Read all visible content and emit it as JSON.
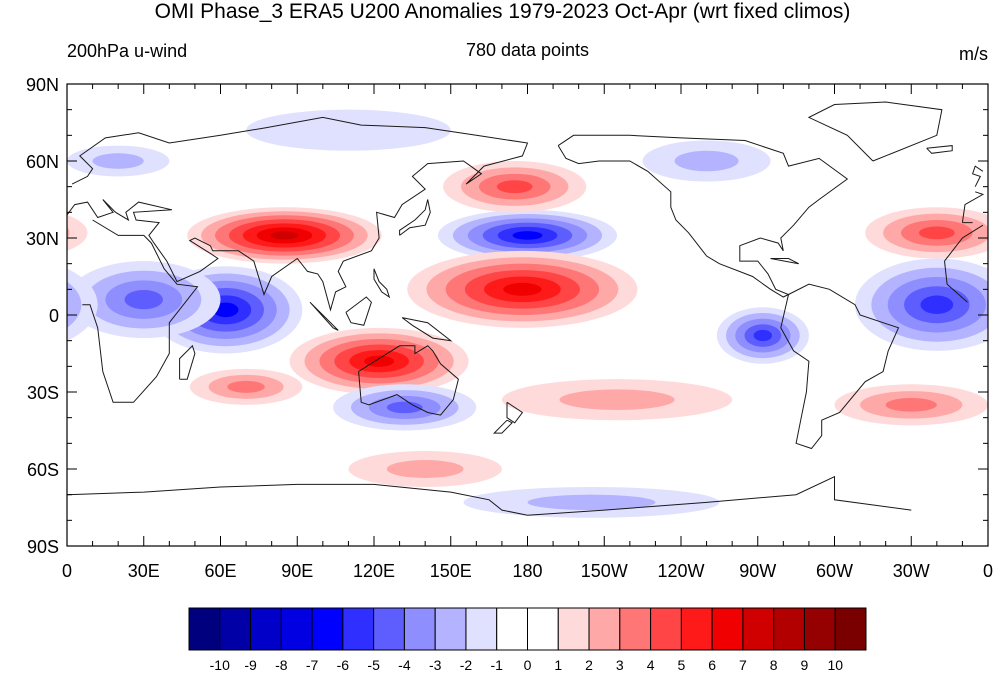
{
  "title": "OMI Phase_3 ERA5 U200 Anomalies 1979-2023 Oct-Apr (wrt fixed climos)",
  "left_string": "200hPa u-wind",
  "center_string": "780 data points",
  "right_string": "m/s",
  "map": {
    "projection": "cylindrical-equidistant",
    "center_longitude": 180,
    "lat_ticks": [
      "90N",
      "60N",
      "30N",
      "0",
      "30S",
      "60S",
      "90S"
    ],
    "lon_ticks": [
      "0",
      "30E",
      "60E",
      "90E",
      "120E",
      "150E",
      "180",
      "150W",
      "120W",
      "90W",
      "60W",
      "30W",
      "0"
    ],
    "coastlines": true,
    "field_blobs": [
      {
        "name": "n-africa-india-jet",
        "lon": 85,
        "lat": 31,
        "value": 7
      },
      {
        "name": "n-pacific-westerly-deficit",
        "lon": 180,
        "lat": 31,
        "value": -6
      },
      {
        "name": "n-pacific-north",
        "lon": 175,
        "lat": 50,
        "value": 4
      },
      {
        "name": "tropical-pacific-westerly",
        "lon": 178,
        "lat": 10,
        "value": 6
      },
      {
        "name": "maritime-continent-south",
        "lon": 122,
        "lat": -18,
        "value": 6
      },
      {
        "name": "indian-ocean-easterly",
        "lon": 62,
        "lat": 2,
        "value": -6
      },
      {
        "name": "east-africa-west-io",
        "lon": 30,
        "lat": 6,
        "value": -4
      },
      {
        "name": "tropical-atlantic-easterly",
        "lon": 340,
        "lat": 4,
        "value": -5
      },
      {
        "name": "south-america-west",
        "lon": 272,
        "lat": -8,
        "value": -5
      },
      {
        "name": "north-atlantic-jet",
        "lon": 340,
        "lat": 32,
        "value": 4
      },
      {
        "name": "australia-south",
        "lon": 132,
        "lat": -36,
        "value": -4
      },
      {
        "name": "south-indian-ocean",
        "lon": 70,
        "lat": -28,
        "value": 3
      },
      {
        "name": "south-pacific",
        "lon": 215,
        "lat": -33,
        "value": 2
      },
      {
        "name": "south-atlantic",
        "lon": 330,
        "lat": -35,
        "value": 3
      },
      {
        "name": "southern-ocean",
        "lon": 140,
        "lat": -60,
        "value": 2
      },
      {
        "name": "antarctic-coast",
        "lon": 205,
        "lat": -73,
        "value": -2
      },
      {
        "name": "arctic-eurasia",
        "lon": 110,
        "lat": 72,
        "value": -1
      },
      {
        "name": "north-america-north",
        "lon": 250,
        "lat": 60,
        "value": -2
      },
      {
        "name": "europe-north",
        "lon": 20,
        "lat": 60,
        "value": -2
      }
    ]
  },
  "colorbar": {
    "labels": [
      "-10",
      "-9",
      "-8",
      "-7",
      "-6",
      "-5",
      "-4",
      "-3",
      "-2",
      "-1",
      "0",
      "1",
      "2",
      "3",
      "4",
      "5",
      "6",
      "7",
      "8",
      "9",
      "10"
    ],
    "colors": [
      "#00007f",
      "#0000a6",
      "#0000c8",
      "#0000e2",
      "#0000ff",
      "#2f2fff",
      "#5e5eff",
      "#8e8eff",
      "#b3b3ff",
      "#e0e0ff",
      "#ffffff",
      "#ffffff",
      "#ffdada",
      "#ffa8a8",
      "#ff7676",
      "#ff4545",
      "#ff1a1a",
      "#f00000",
      "#d00000",
      "#b20000",
      "#950000",
      "#7a0000"
    ]
  }
}
